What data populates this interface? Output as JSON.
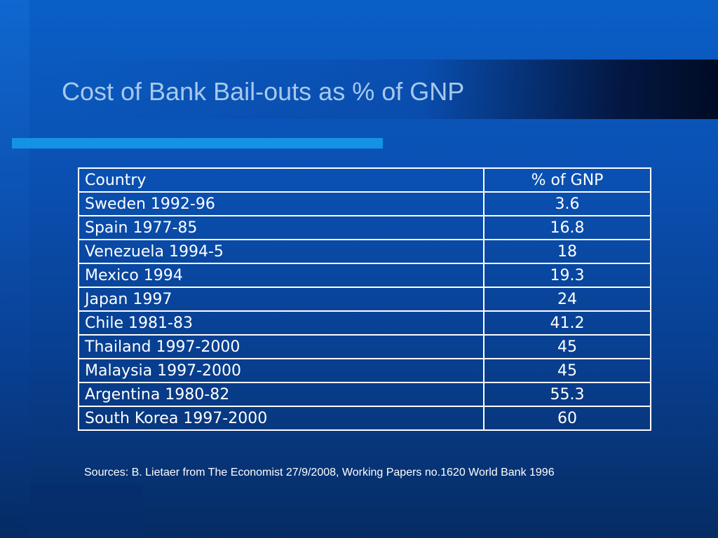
{
  "slide": {
    "title": "Cost of Bank Bail-outs as % of GNP",
    "sources": "Sources: B. Lietaer from The Economist 27/9/2008, Working Papers no.1620 World Bank 1996"
  },
  "table": {
    "headers": [
      "Country",
      "% of GNP"
    ],
    "rows": [
      {
        "country": "Sweden 1992-96",
        "gnp": "3.6"
      },
      {
        "country": "Spain 1977-85",
        "gnp": "16.8"
      },
      {
        "country": "Venezuela 1994-5",
        "gnp": "18"
      },
      {
        "country": "Mexico 1994",
        "gnp": "19.3"
      },
      {
        "country": "Japan 1997",
        "gnp": "24"
      },
      {
        "country": "Chile 1981-83",
        "gnp": "41.2"
      },
      {
        "country": "Thailand 1997-2000",
        "gnp": "45"
      },
      {
        "country": "Malaysia 1997-2000",
        "gnp": "45"
      },
      {
        "country": "Argentina 1980-82",
        "gnp": "55.3"
      },
      {
        "country": "South Korea 1997-2000",
        "gnp": "60"
      }
    ]
  },
  "colors": {
    "background": "#0a4fb0",
    "title": "#a8c8ec",
    "accent_line": "#1392e6",
    "table_text": "#ffffff"
  }
}
